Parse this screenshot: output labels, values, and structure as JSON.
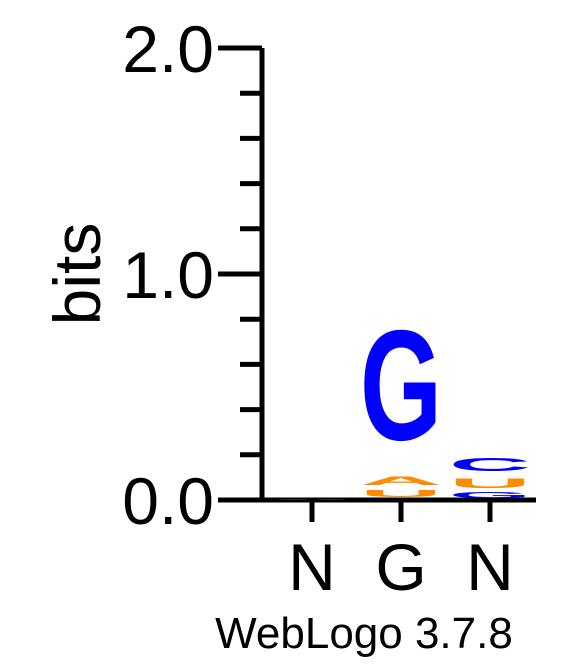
{
  "chart_data": {
    "type": "sequence-logo",
    "ylabel": "bits",
    "ylim": [
      0,
      2.0
    ],
    "yticks": [
      {
        "value": 0.0,
        "label": "0.0"
      },
      {
        "value": 1.0,
        "label": "1.0"
      },
      {
        "value": 2.0,
        "label": "2.0"
      }
    ],
    "minor_tick_step": 0.2,
    "categories": [
      "N",
      "G",
      "N"
    ],
    "colors": {
      "G": "#0000ff",
      "C": "#0000ff",
      "A": "#ff8c00",
      "U": "#ff8c00"
    },
    "positions": [
      {
        "label": "N",
        "stack": [
          {
            "letter": "A",
            "value": 0.006
          }
        ]
      },
      {
        "label": "G",
        "stack": [
          {
            "letter": "C",
            "value": 0.004
          },
          {
            "letter": "U",
            "value": 0.05
          },
          {
            "letter": "A",
            "value": 0.06
          },
          {
            "letter": "G",
            "value": 0.78
          }
        ]
      },
      {
        "label": "N",
        "stack": [
          {
            "letter": "G",
            "value": 0.04
          },
          {
            "letter": "U",
            "value": 0.07
          },
          {
            "letter": "C",
            "value": 0.09
          }
        ]
      }
    ],
    "footer": "WebLogo 3.7.8"
  }
}
